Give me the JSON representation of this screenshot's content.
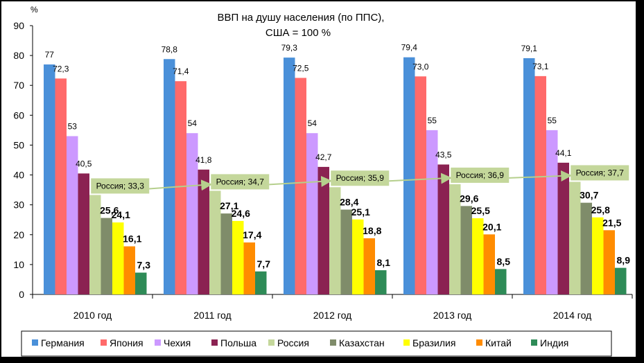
{
  "chart_data": {
    "type": "bar",
    "title": "ВВП на душу населения (по ППС),",
    "subtitle": "США = 100 %",
    "y_unit_label": "%",
    "ylim": [
      0,
      90
    ],
    "y_ticks": [
      "0",
      "10",
      "20",
      "30",
      "40",
      "50",
      "60",
      "70",
      "80",
      "90"
    ],
    "categories": [
      "2010 год",
      "2011 год",
      "2012 год",
      "2013 год",
      "2014 год"
    ],
    "series": [
      {
        "name": "Германия",
        "color": "#4A90D9",
        "values": [
          77,
          78.8,
          79.3,
          79.4,
          79.1
        ],
        "labels": [
          "77",
          "78,8",
          "79,3",
          "79,4",
          "79,1"
        ]
      },
      {
        "name": "Япония",
        "color": "#FF6A6A",
        "values": [
          72.3,
          71.4,
          72.5,
          73.0,
          73.1
        ],
        "labels": [
          "72,3",
          "71,4",
          "72,5",
          "73,0",
          "73,1"
        ]
      },
      {
        "name": "Чехия",
        "color": "#CC99FF",
        "values": [
          53,
          54,
          54,
          55,
          55
        ],
        "labels": [
          "53",
          "54",
          "54",
          "55",
          "55"
        ]
      },
      {
        "name": "Польша",
        "color": "#8B2252",
        "values": [
          40.5,
          41.8,
          42.7,
          43.5,
          44.1
        ],
        "labels": [
          "40,5",
          "41,8",
          "42,7",
          "43,5",
          "44,1"
        ]
      },
      {
        "name": "Россия",
        "color": "#C4D79B",
        "values": [
          33.3,
          34.7,
          35.9,
          36.9,
          37.7
        ],
        "labels": [
          "Россия; 33,3",
          "Россия; 34,7",
          "Россия; 35,9",
          "Россия; 36,9",
          "Россия; 37,7"
        ]
      },
      {
        "name": "Казахстан",
        "color": "#7F8C6A",
        "values": [
          25.6,
          27.1,
          28.4,
          29.6,
          30.7
        ],
        "labels": [
          "25,6",
          "27,1",
          "28,4",
          "29,6",
          "30,7"
        ]
      },
      {
        "name": "Бразилия",
        "color": "#FFFF00",
        "values": [
          24.1,
          24.6,
          25.1,
          25.5,
          25.8
        ],
        "labels": [
          "24,1",
          "24,6",
          "25,1",
          "25,5",
          "25,8"
        ]
      },
      {
        "name": "Китай",
        "color": "#FF8C00",
        "values": [
          16.1,
          17.4,
          18.8,
          20.1,
          21.5
        ],
        "labels": [
          "16,1",
          "17,4",
          "18,8",
          "20,1",
          "21,5"
        ]
      },
      {
        "name": "Индия",
        "color": "#2E8B57",
        "values": [
          7.3,
          7.7,
          8.1,
          8.5,
          8.9
        ],
        "labels": [
          "7,3",
          "7,7",
          "8,1",
          "8,5",
          "8,9"
        ]
      }
    ],
    "grid": false,
    "legend_position": "bottom",
    "trend_arrow_series": "Россия",
    "colors": {
      "background": "#FFFFFF",
      "axis": "#000000",
      "russia_callout_fill": "#C4D79B",
      "trend_arrow": "#B5CF8C",
      "frame": "#000000"
    }
  }
}
